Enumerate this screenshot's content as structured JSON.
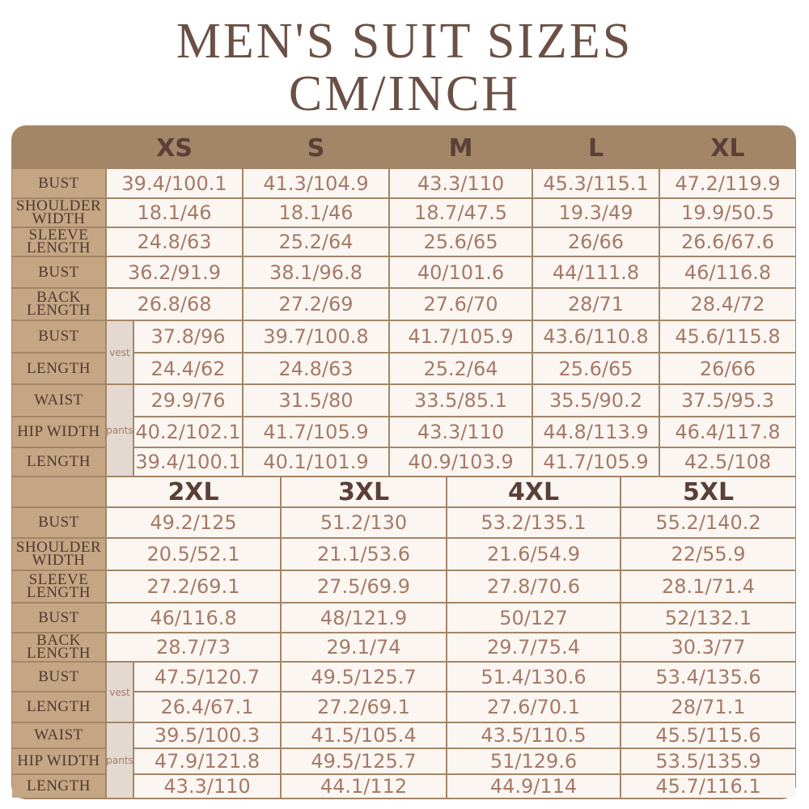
{
  "title": {
    "line1": "MEN'S SUIT SIZES",
    "line2": "CM/INCH"
  },
  "colors": {
    "frame": "#a38668",
    "label_bg": "#c4a584",
    "cell_bg": "#fbf6f1",
    "value_text": "#a57a68",
    "heading_text": "#5a4038"
  },
  "row_labels": [
    "BUST",
    "SHOULDER WIDTH",
    "SLEEVE LENGTH",
    "BUST",
    "BACK LENGTH",
    "BUST",
    "LENGTH",
    "WAIST",
    "HIP WIDTH",
    "LENGTH"
  ],
  "groups": {
    "vest": "vest",
    "pants": "pants"
  },
  "top": {
    "sizes": [
      "XS",
      "S",
      "M",
      "L",
      "XL"
    ],
    "rows": [
      [
        "39.4/100.1",
        "41.3/104.9",
        "43.3/110",
        "45.3/115.1",
        "47.2/119.9"
      ],
      [
        "18.1/46",
        "18.1/46",
        "18.7/47.5",
        "19.3/49",
        "19.9/50.5"
      ],
      [
        "24.8/63",
        "25.2/64",
        "25.6/65",
        "26/66",
        "26.6/67.6"
      ],
      [
        "36.2/91.9",
        "38.1/96.8",
        "40/101.6",
        "44/111.8",
        "46/116.8"
      ],
      [
        "26.8/68",
        "27.2/69",
        "27.6/70",
        "28/71",
        "28.4/72"
      ],
      [
        "37.8/96",
        "39.7/100.8",
        "41.7/105.9",
        "43.6/110.8",
        "45.6/115.8"
      ],
      [
        "24.4/62",
        "24.8/63",
        "25.2/64",
        "25.6/65",
        "26/66"
      ],
      [
        "29.9/76",
        "31.5/80",
        "33.5/85.1",
        "35.5/90.2",
        "37.5/95.3"
      ],
      [
        "40.2/102.1",
        "41.7/105.9",
        "43.3/110",
        "44.8/113.9",
        "46.4/117.8"
      ],
      [
        "39.4/100.1",
        "40.1/101.9",
        "40.9/103.9",
        "41.7/105.9",
        "42.5/108"
      ]
    ]
  },
  "bottom": {
    "sizes": [
      "2XL",
      "3XL",
      "4XL",
      "5XL"
    ],
    "rows": [
      [
        "49.2/125",
        "51.2/130",
        "53.2/135.1",
        "55.2/140.2"
      ],
      [
        "20.5/52.1",
        "21.1/53.6",
        "21.6/54.9",
        "22/55.9"
      ],
      [
        "27.2/69.1",
        "27.5/69.9",
        "27.8/70.6",
        "28.1/71.4"
      ],
      [
        "46/116.8",
        "48/121.9",
        "50/127",
        "52/132.1"
      ],
      [
        "28.7/73",
        "29.1/74",
        "29.7/75.4",
        "30.3/77"
      ],
      [
        "47.5/120.7",
        "49.5/125.7",
        "51.4/130.6",
        "53.4/135.6"
      ],
      [
        "26.4/67.1",
        "27.2/69.1",
        "27.6/70.1",
        "28/71.1"
      ],
      [
        "39.5/100.3",
        "41.5/105.4",
        "43.5/110.5",
        "45.5/115.6"
      ],
      [
        "47.9/121.8",
        "49.5/125.7",
        "51/129.6",
        "53.5/135.9"
      ],
      [
        "43.3/110",
        "44.1/112",
        "44.9/114",
        "45.7/116.1"
      ]
    ]
  }
}
